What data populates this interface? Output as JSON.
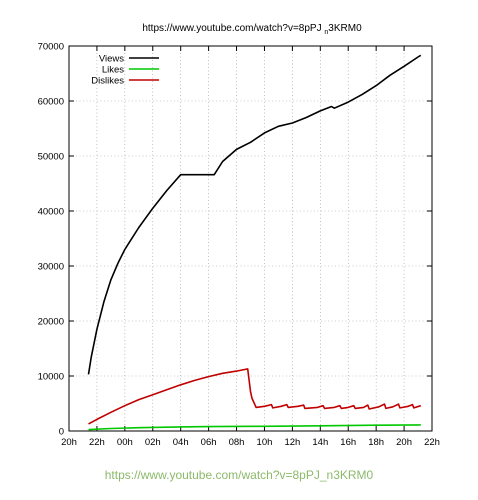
{
  "chart_data": {
    "type": "line",
    "title": "https://www.youtube.com/watch?v=8pPJ_n3KRM0",
    "xlabel": "",
    "ylabel": "",
    "x_ticks": [
      "20h",
      "22h",
      "00h",
      "02h",
      "04h",
      "06h",
      "08h",
      "10h",
      "12h",
      "14h",
      "16h",
      "18h",
      "20h",
      "22h"
    ],
    "y_ticks": [
      "0",
      "10000",
      "20000",
      "30000",
      "40000",
      "50000",
      "60000",
      "70000"
    ],
    "xlim": [
      0,
      26
    ],
    "ylim": [
      0,
      70000
    ],
    "grid": true,
    "legend_position": "top-left",
    "series": [
      {
        "name": "Views",
        "color": "#000000",
        "points": [
          [
            1.4,
            10300
          ],
          [
            1.6,
            13500
          ],
          [
            2.0,
            18500
          ],
          [
            2.5,
            23500
          ],
          [
            3.0,
            27500
          ],
          [
            3.5,
            30500
          ],
          [
            4.0,
            33000
          ],
          [
            5.0,
            37000
          ],
          [
            6.0,
            40500
          ],
          [
            7.0,
            43700
          ],
          [
            8.0,
            46600
          ],
          [
            10.0,
            46600
          ],
          [
            10.4,
            46600
          ],
          [
            11.0,
            49000
          ],
          [
            12.0,
            51200
          ],
          [
            13.0,
            52500
          ],
          [
            14.0,
            54200
          ],
          [
            15.0,
            55400
          ],
          [
            16.0,
            56000
          ],
          [
            17.0,
            57000
          ],
          [
            18.0,
            58200
          ],
          [
            18.8,
            59000
          ],
          [
            19.0,
            58700
          ],
          [
            20.0,
            59800
          ],
          [
            21.0,
            61200
          ],
          [
            22.0,
            62800
          ],
          [
            23.0,
            64700
          ],
          [
            24.0,
            66300
          ],
          [
            25.0,
            68000
          ],
          [
            25.2,
            68300
          ]
        ]
      },
      {
        "name": "Likes",
        "color": "#00c800",
        "points": [
          [
            1.4,
            250
          ],
          [
            3.0,
            450
          ],
          [
            5.0,
            600
          ],
          [
            8.0,
            750
          ],
          [
            10.0,
            800
          ],
          [
            14.0,
            850
          ],
          [
            18.0,
            950
          ],
          [
            22.0,
            1050
          ],
          [
            25.2,
            1100
          ]
        ]
      },
      {
        "name": "Dislikes",
        "color": "#c00000",
        "points": [
          [
            1.4,
            1300
          ],
          [
            2.0,
            2100
          ],
          [
            3.0,
            3400
          ],
          [
            4.0,
            4600
          ],
          [
            5.0,
            5700
          ],
          [
            6.0,
            6600
          ],
          [
            7.0,
            7500
          ],
          [
            8.0,
            8400
          ],
          [
            9.0,
            9200
          ],
          [
            10.0,
            9900
          ],
          [
            11.0,
            10500
          ],
          [
            12.0,
            10900
          ],
          [
            12.8,
            11300
          ],
          [
            13.0,
            7200
          ],
          [
            13.1,
            6000
          ],
          [
            13.4,
            4300
          ],
          [
            14.0,
            4500
          ],
          [
            14.5,
            4800
          ],
          [
            14.6,
            4200
          ],
          [
            15.2,
            4500
          ],
          [
            15.6,
            4800
          ],
          [
            15.7,
            4300
          ],
          [
            16.4,
            4500
          ],
          [
            16.8,
            4700
          ],
          [
            16.9,
            4100
          ],
          [
            17.8,
            4300
          ],
          [
            18.2,
            4600
          ],
          [
            18.3,
            4100
          ],
          [
            19.0,
            4300
          ],
          [
            19.4,
            4600
          ],
          [
            19.5,
            4100
          ],
          [
            20.0,
            4300
          ],
          [
            20.4,
            4600
          ],
          [
            20.5,
            4100
          ],
          [
            21.1,
            4300
          ],
          [
            21.4,
            4700
          ],
          [
            21.5,
            4000
          ],
          [
            22.2,
            4400
          ],
          [
            22.6,
            4900
          ],
          [
            22.7,
            4100
          ],
          [
            23.2,
            4400
          ],
          [
            23.6,
            4900
          ],
          [
            23.7,
            4200
          ],
          [
            24.3,
            4500
          ],
          [
            24.6,
            4800
          ],
          [
            24.7,
            4200
          ],
          [
            25.2,
            4600
          ]
        ]
      }
    ]
  },
  "footer": {
    "caption": "https://www.youtube.com/watch?v=8pPJ_n3KRM0"
  }
}
